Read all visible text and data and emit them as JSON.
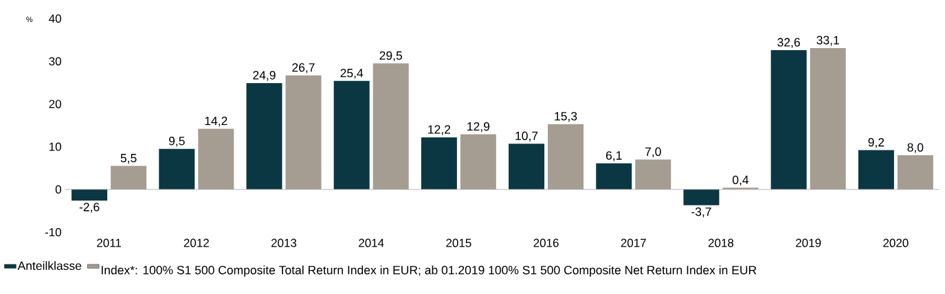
{
  "chart_data": {
    "type": "bar",
    "ylabel": "%",
    "categories": [
      "2011",
      "2012",
      "2013",
      "2014",
      "2015",
      "2016",
      "2017",
      "2018",
      "2019",
      "2020"
    ],
    "series": [
      {
        "name": "Anteilklasse",
        "color": "#0b3742",
        "values": [
          -2.6,
          9.5,
          24.9,
          25.4,
          12.2,
          10.7,
          6.1,
          -3.7,
          32.6,
          9.2
        ],
        "value_labels": [
          "-2,6",
          "9,5",
          "24,9",
          "25,4",
          "12,2",
          "10,7",
          "6,1",
          "-3,7",
          "32,6",
          "9,2"
        ]
      },
      {
        "name": "Index*: 100% S1 500 Composite Total Return Index in EUR; ab 01.2019 100% S1 500 Composite Net Return Index in EUR",
        "color": "#a59c92",
        "values": [
          5.5,
          14.2,
          26.7,
          29.5,
          12.9,
          15.3,
          7.0,
          0.4,
          33.1,
          8.0
        ],
        "value_labels": [
          "5,5",
          "14,2",
          "26,7",
          "29,5",
          "12,9",
          "15,3",
          "7,0",
          "0,4",
          "33,1",
          "8,0"
        ]
      }
    ],
    "ylim": [
      -10,
      40
    ],
    "yticks": [
      -10,
      0,
      10,
      20,
      30,
      40
    ],
    "legend": "bottom left"
  }
}
